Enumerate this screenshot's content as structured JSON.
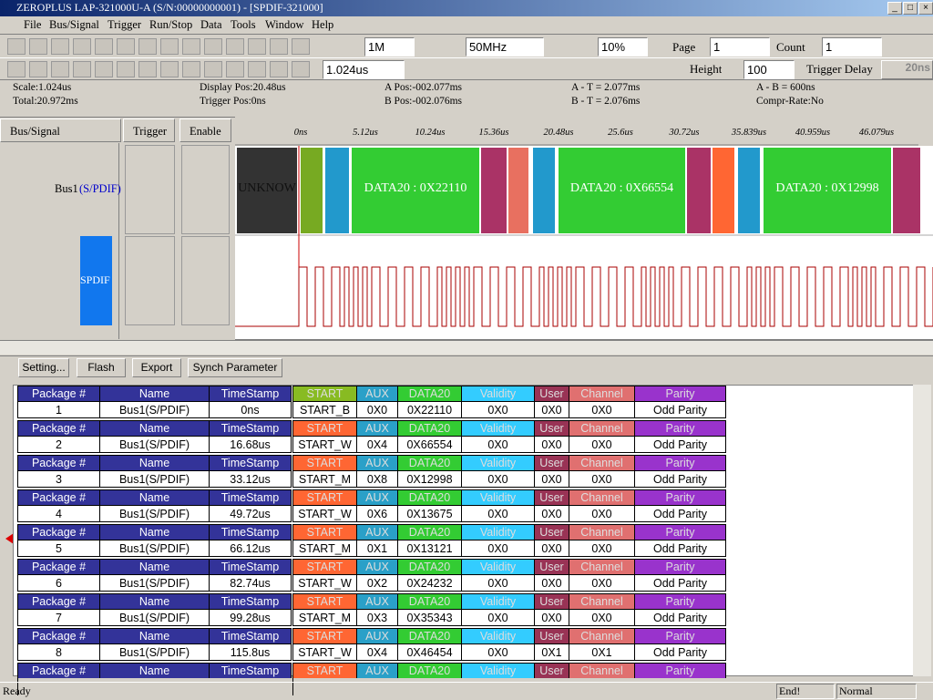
{
  "title_bar": "ZEROPLUS LAP-321000U-A (S/N:00000000001) - [SPDIF-321000]",
  "menu": [
    "File",
    "Bus/Signal",
    "Trigger",
    "Run/Stop",
    "Data",
    "Tools",
    "Window",
    "Help"
  ],
  "toolbar1": {
    "sample_depth": "1M",
    "frequency": "50MHz",
    "trigger_percent": "10%",
    "page_label": "Page",
    "page": "1",
    "count_label": "Count",
    "count": "1"
  },
  "toolbar2": {
    "time_per_div": "1.024us",
    "height_label": "Height",
    "height": "100",
    "trigger_delay_label": "Trigger Delay",
    "trigger_delay": "20ns"
  },
  "info": {
    "scale": "Scale:1.024us",
    "total": "Total:20.972ms",
    "display_pos": "Display Pos:20.48us",
    "trigger_pos": "Trigger Pos:0ns",
    "a_pos": "A Pos:-002.077ms",
    "b_pos": "B Pos:-002.076ms",
    "a_t": "A - T = 2.077ms",
    "b_t": "B - T = 2.076ms",
    "a_b": "A - B = 600ns",
    "compr": "Compr-Rate:No"
  },
  "panels": {
    "bus_signal": "Bus/Signal",
    "trigger": "Trigger",
    "enable": "Enable"
  },
  "signals": {
    "bus": "Bus1",
    "bus_type": "(S/PDIF)",
    "signal": "SPDIF"
  },
  "timeline": [
    "0ns",
    "5.12us",
    "10.24us",
    "15.36us",
    "20.48us",
    "25.6us",
    "30.72us",
    "35.839us",
    "40.959us",
    "46.079us"
  ],
  "waveform_labels": [
    "UNKNOW",
    "DATA20 : 0X22110",
    "DATA20 : 0X66554",
    "DATA20 : 0X12998"
  ],
  "buttons": [
    "Setting...",
    "Flash",
    "Export",
    "Synch Parameter"
  ],
  "table": {
    "headers": [
      "Package #",
      "Name",
      "TimeStamp",
      "START",
      "AUX",
      "DATA20",
      "Validity",
      "User",
      "Channel",
      "Parity"
    ],
    "rows": [
      [
        "1",
        "Bus1(S/PDIF)",
        "0ns",
        "START_B",
        "0X0",
        "0X22110",
        "0X0",
        "0X0",
        "0X0",
        "Odd Parity"
      ],
      [
        "2",
        "Bus1(S/PDIF)",
        "16.68us",
        "START_W",
        "0X4",
        "0X66554",
        "0X0",
        "0X0",
        "0X0",
        "Odd Parity"
      ],
      [
        "3",
        "Bus1(S/PDIF)",
        "33.12us",
        "START_M",
        "0X8",
        "0X12998",
        "0X0",
        "0X0",
        "0X0",
        "Odd Parity"
      ],
      [
        "4",
        "Bus1(S/PDIF)",
        "49.72us",
        "START_W",
        "0X6",
        "0X13675",
        "0X0",
        "0X0",
        "0X0",
        "Odd Parity"
      ],
      [
        "5",
        "Bus1(S/PDIF)",
        "66.12us",
        "START_M",
        "0X1",
        "0X13121",
        "0X0",
        "0X0",
        "0X0",
        "Odd Parity"
      ],
      [
        "6",
        "Bus1(S/PDIF)",
        "82.74us",
        "START_W",
        "0X2",
        "0X24232",
        "0X0",
        "0X0",
        "0X0",
        "Odd Parity"
      ],
      [
        "7",
        "Bus1(S/PDIF)",
        "99.28us",
        "START_M",
        "0X3",
        "0X35343",
        "0X0",
        "0X0",
        "0X0",
        "Odd Parity"
      ],
      [
        "8",
        "Bus1(S/PDIF)",
        "115.8us",
        "START_W",
        "0X4",
        "0X46454",
        "0X0",
        "0X1",
        "0X1",
        "Odd Parity"
      ]
    ]
  },
  "status": {
    "ready": "Ready",
    "end": "End!",
    "mode": "Normal"
  }
}
